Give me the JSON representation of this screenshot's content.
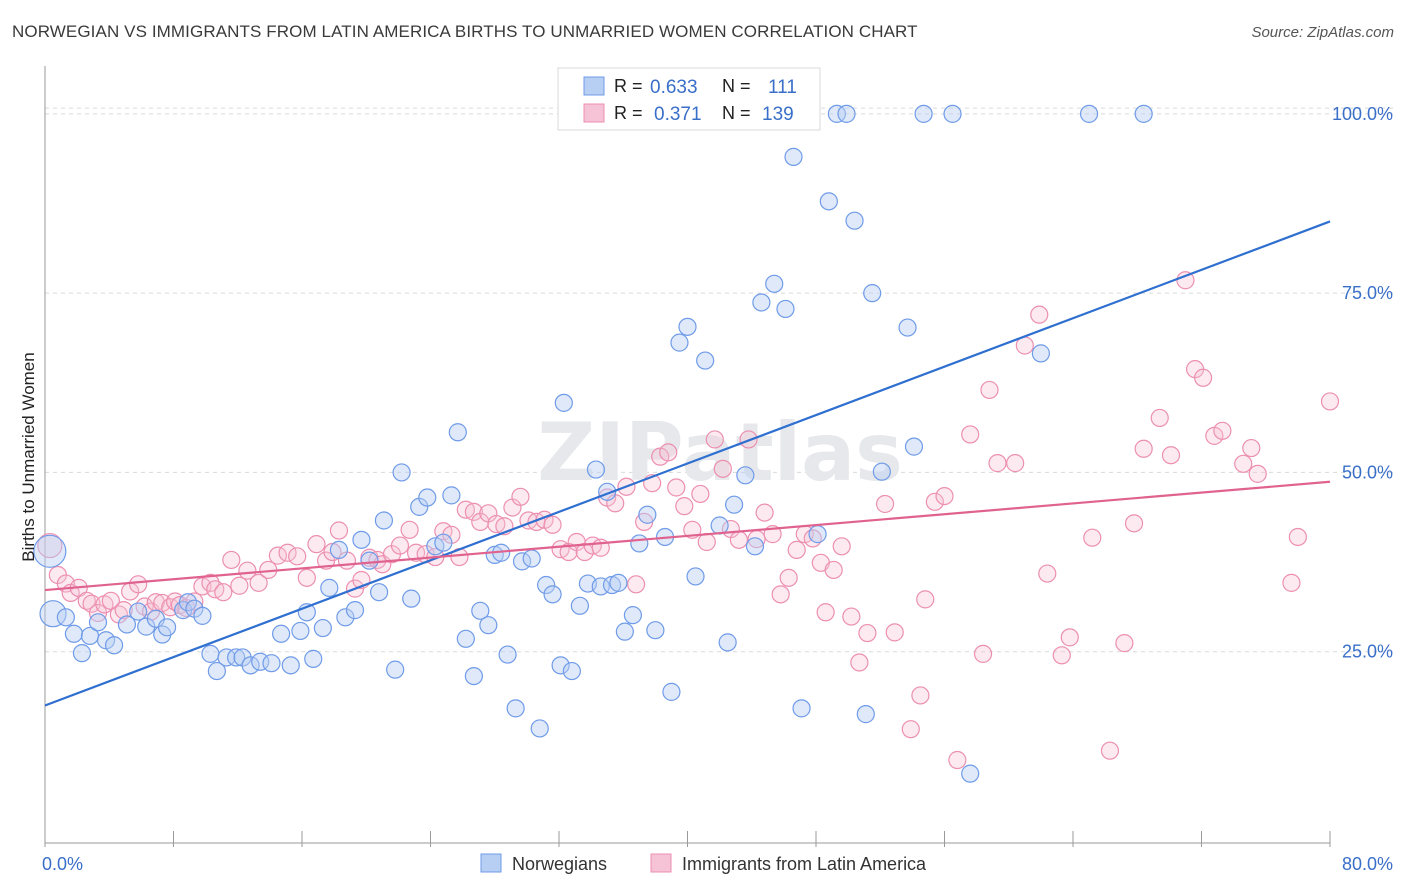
{
  "title": "NORWEGIAN VS IMMIGRANTS FROM LATIN AMERICA BIRTHS TO UNMARRIED WOMEN CORRELATION CHART",
  "source": "Source: ZipAtlas.com",
  "watermark": "ZIPatlas",
  "colors": {
    "blue": "#6f9be8",
    "blue_fill": "#b7cff3",
    "blue_line": "#2e6fd0",
    "pink": "#ec8fb0",
    "pink_fill": "#f6c2d5",
    "pink_line": "#e0628f",
    "tick": "#3a6fc9"
  },
  "legend_top": [
    {
      "r_label": "R =",
      "r": "0.633",
      "n_label": "N =",
      "n": "111"
    },
    {
      "r_label": "R =",
      "r": "0.371",
      "n_label": "N =",
      "n": "139"
    }
  ],
  "chart_data": {
    "type": "scatter",
    "title": "NORWEGIAN VS IMMIGRANTS FROM LATIN AMERICA BIRTHS TO UNMARRIED WOMEN CORRELATION CHART",
    "xlabel": "",
    "ylabel": "Births to Unmarried Women",
    "xlim": [
      0,
      80
    ],
    "ylim": [
      0,
      105
    ],
    "x_tick_labels": [
      "0.0%",
      "80.0%"
    ],
    "y_tick_labels": [
      "25.0%",
      "50.0%",
      "75.0%",
      "100.0%"
    ],
    "y_ticks": [
      25,
      50,
      75,
      100
    ],
    "grid": true,
    "legend_position": "bottom-center",
    "series": [
      {
        "name": "Norwegians",
        "color": "#6f9be8",
        "regression": {
          "x0": 0,
          "y0": 17.5,
          "x1": 80,
          "y1": 85.0
        },
        "points": [
          [
            0.3,
            39
          ],
          [
            0.5,
            30.3
          ],
          [
            1.3,
            29.8
          ],
          [
            1.8,
            27.5
          ],
          [
            2.3,
            24.8
          ],
          [
            2.8,
            27.2
          ],
          [
            3.3,
            29.1
          ],
          [
            3.8,
            26.6
          ],
          [
            4.3,
            25.9
          ],
          [
            5.1,
            28.8
          ],
          [
            5.8,
            30.6
          ],
          [
            6.3,
            28.5
          ],
          [
            6.9,
            29.6
          ],
          [
            7.3,
            27.4
          ],
          [
            7.6,
            28.4
          ],
          [
            8.6,
            30.8
          ],
          [
            8.9,
            31.9
          ],
          [
            9.3,
            31.0
          ],
          [
            9.8,
            30.0
          ],
          [
            10.3,
            24.7
          ],
          [
            10.7,
            22.3
          ],
          [
            11.3,
            24.2
          ],
          [
            11.9,
            24.2
          ],
          [
            12.3,
            24.2
          ],
          [
            12.8,
            23.1
          ],
          [
            13.4,
            23.6
          ],
          [
            14.1,
            23.4
          ],
          [
            14.7,
            27.5
          ],
          [
            15.3,
            23.1
          ],
          [
            15.9,
            27.9
          ],
          [
            16.3,
            30.5
          ],
          [
            16.7,
            24.0
          ],
          [
            17.3,
            28.3
          ],
          [
            17.7,
            33.9
          ],
          [
            18.3,
            39.2
          ],
          [
            18.7,
            29.8
          ],
          [
            19.3,
            30.8
          ],
          [
            19.7,
            40.6
          ],
          [
            20.2,
            37.7
          ],
          [
            20.8,
            33.3
          ],
          [
            21.1,
            43.3
          ],
          [
            21.8,
            22.5
          ],
          [
            22.2,
            50.0
          ],
          [
            22.8,
            32.4
          ],
          [
            23.3,
            45.2
          ],
          [
            23.8,
            46.5
          ],
          [
            24.3,
            39.7
          ],
          [
            24.8,
            40.2
          ],
          [
            25.3,
            46.8
          ],
          [
            25.7,
            55.6
          ],
          [
            26.2,
            26.8
          ],
          [
            26.7,
            21.6
          ],
          [
            27.1,
            30.7
          ],
          [
            27.6,
            28.7
          ],
          [
            28.0,
            38.5
          ],
          [
            28.4,
            38.8
          ],
          [
            28.8,
            24.6
          ],
          [
            29.3,
            17.1
          ],
          [
            29.7,
            37.6
          ],
          [
            30.3,
            38.0
          ],
          [
            30.8,
            14.3
          ],
          [
            31.2,
            34.3
          ],
          [
            31.6,
            33.0
          ],
          [
            32.1,
            23.1
          ],
          [
            32.3,
            59.7
          ],
          [
            32.8,
            22.3
          ],
          [
            33.3,
            31.4
          ],
          [
            33.8,
            34.5
          ],
          [
            34.3,
            50.4
          ],
          [
            34.6,
            34.1
          ],
          [
            35.0,
            47.3
          ],
          [
            35.3,
            34.3
          ],
          [
            35.7,
            34.6
          ],
          [
            36.1,
            27.8
          ],
          [
            36.6,
            30.1
          ],
          [
            37.0,
            40.1
          ],
          [
            37.5,
            44.1
          ],
          [
            38.0,
            28.0
          ],
          [
            38.6,
            41.0
          ],
          [
            39.0,
            19.4
          ],
          [
            39.5,
            68.1
          ],
          [
            40.0,
            70.3
          ],
          [
            40.5,
            35.5
          ],
          [
            41.1,
            65.6
          ],
          [
            42.0,
            42.6
          ],
          [
            42.5,
            26.3
          ],
          [
            42.9,
            45.5
          ],
          [
            43.6,
            49.6
          ],
          [
            44.2,
            39.7
          ],
          [
            44.6,
            73.7
          ],
          [
            45.4,
            76.3
          ],
          [
            46.1,
            72.8
          ],
          [
            46.6,
            94.0
          ],
          [
            47.1,
            17.1
          ],
          [
            48.1,
            41.4
          ],
          [
            48.8,
            87.8
          ],
          [
            49.3,
            100
          ],
          [
            49.9,
            100
          ],
          [
            50.4,
            85.1
          ],
          [
            51.1,
            16.3
          ],
          [
            51.5,
            75.0
          ],
          [
            52.1,
            50.1
          ],
          [
            53.7,
            70.2
          ],
          [
            54.1,
            53.6
          ],
          [
            54.7,
            100
          ],
          [
            56.5,
            100
          ],
          [
            57.6,
            8.0
          ],
          [
            62.0,
            66.6
          ],
          [
            65.0,
            100
          ],
          [
            68.4,
            100
          ]
        ]
      },
      {
        "name": "Immigrants from Latin America",
        "color": "#ec8fb0",
        "regression": {
          "x0": 0,
          "y0": 33.6,
          "x1": 80,
          "y1": 48.7
        },
        "points": [
          [
            0.3,
            39.8
          ],
          [
            0.8,
            35.7
          ],
          [
            1.3,
            34.5
          ],
          [
            1.6,
            33.2
          ],
          [
            2.1,
            33.9
          ],
          [
            2.6,
            32.1
          ],
          [
            2.9,
            31.7
          ],
          [
            3.3,
            30.4
          ],
          [
            3.7,
            31.6
          ],
          [
            4.1,
            32.1
          ],
          [
            4.6,
            30.2
          ],
          [
            4.9,
            30.8
          ],
          [
            5.3,
            33.4
          ],
          [
            5.8,
            34.4
          ],
          [
            6.2,
            31.3
          ],
          [
            6.6,
            30.6
          ],
          [
            6.9,
            31.9
          ],
          [
            7.3,
            31.8
          ],
          [
            7.8,
            31.2
          ],
          [
            8.1,
            32.0
          ],
          [
            8.4,
            31.5
          ],
          [
            8.8,
            31.1
          ],
          [
            9.3,
            32.0
          ],
          [
            9.8,
            34.1
          ],
          [
            10.3,
            34.6
          ],
          [
            10.6,
            33.7
          ],
          [
            11.1,
            33.3
          ],
          [
            11.6,
            37.8
          ],
          [
            12.1,
            34.2
          ],
          [
            12.6,
            36.3
          ],
          [
            13.3,
            34.6
          ],
          [
            13.9,
            36.4
          ],
          [
            14.5,
            38.4
          ],
          [
            15.1,
            38.8
          ],
          [
            15.7,
            38.3
          ],
          [
            16.3,
            35.3
          ],
          [
            16.9,
            40.0
          ],
          [
            17.5,
            37.7
          ],
          [
            17.9,
            38.9
          ],
          [
            18.3,
            41.9
          ],
          [
            18.8,
            37.7
          ],
          [
            19.3,
            33.8
          ],
          [
            19.7,
            35.0
          ],
          [
            20.2,
            38.1
          ],
          [
            20.7,
            37.8
          ],
          [
            21.0,
            37.2
          ],
          [
            21.6,
            38.6
          ],
          [
            22.1,
            39.8
          ],
          [
            22.7,
            42.0
          ],
          [
            23.1,
            38.8
          ],
          [
            23.7,
            38.6
          ],
          [
            24.3,
            38.2
          ],
          [
            24.8,
            41.8
          ],
          [
            25.3,
            41.3
          ],
          [
            25.8,
            38.2
          ],
          [
            26.2,
            44.8
          ],
          [
            26.7,
            44.5
          ],
          [
            27.1,
            43.1
          ],
          [
            27.6,
            44.3
          ],
          [
            28.1,
            42.8
          ],
          [
            28.6,
            42.5
          ],
          [
            29.1,
            45.1
          ],
          [
            29.6,
            46.6
          ],
          [
            30.1,
            43.3
          ],
          [
            30.6,
            43.1
          ],
          [
            31.1,
            43.4
          ],
          [
            31.6,
            42.7
          ],
          [
            32.1,
            39.3
          ],
          [
            32.6,
            38.9
          ],
          [
            33.1,
            40.3
          ],
          [
            33.6,
            38.9
          ],
          [
            34.1,
            39.8
          ],
          [
            34.6,
            39.5
          ],
          [
            35.0,
            46.5
          ],
          [
            35.5,
            45.7
          ],
          [
            36.2,
            48.0
          ],
          [
            36.8,
            34.4
          ],
          [
            37.3,
            43.1
          ],
          [
            37.8,
            48.5
          ],
          [
            38.3,
            52.2
          ],
          [
            38.8,
            52.8
          ],
          [
            39.3,
            47.9
          ],
          [
            39.8,
            45.3
          ],
          [
            40.3,
            42.0
          ],
          [
            40.8,
            47.0
          ],
          [
            41.2,
            40.3
          ],
          [
            41.7,
            54.6
          ],
          [
            42.2,
            50.5
          ],
          [
            42.7,
            42.1
          ],
          [
            43.2,
            40.6
          ],
          [
            43.8,
            54.6
          ],
          [
            44.3,
            40.7
          ],
          [
            44.8,
            44.4
          ],
          [
            45.3,
            41.4
          ],
          [
            45.8,
            33.0
          ],
          [
            46.3,
            35.3
          ],
          [
            46.8,
            39.2
          ],
          [
            47.3,
            41.4
          ],
          [
            47.8,
            40.8
          ],
          [
            48.3,
            37.4
          ],
          [
            48.6,
            30.5
          ],
          [
            49.1,
            36.4
          ],
          [
            49.6,
            39.7
          ],
          [
            50.2,
            29.9
          ],
          [
            50.7,
            23.5
          ],
          [
            51.2,
            27.6
          ],
          [
            52.3,
            45.6
          ],
          [
            52.9,
            27.7
          ],
          [
            53.9,
            14.2
          ],
          [
            54.5,
            18.9
          ],
          [
            54.8,
            32.3
          ],
          [
            55.4,
            45.9
          ],
          [
            56.0,
            46.7
          ],
          [
            56.8,
            9.9
          ],
          [
            57.6,
            55.3
          ],
          [
            58.4,
            24.7
          ],
          [
            58.8,
            61.5
          ],
          [
            59.3,
            51.3
          ],
          [
            60.4,
            51.3
          ],
          [
            61.0,
            67.7
          ],
          [
            61.9,
            72.0
          ],
          [
            62.4,
            35.9
          ],
          [
            63.3,
            24.5
          ],
          [
            63.8,
            27.0
          ],
          [
            65.2,
            40.9
          ],
          [
            66.3,
            11.2
          ],
          [
            67.2,
            26.2
          ],
          [
            67.8,
            42.9
          ],
          [
            68.4,
            53.3
          ],
          [
            69.4,
            57.6
          ],
          [
            70.1,
            52.4
          ],
          [
            71.0,
            76.8
          ],
          [
            71.6,
            64.4
          ],
          [
            72.1,
            63.2
          ],
          [
            72.8,
            55.1
          ],
          [
            73.3,
            55.8
          ],
          [
            74.6,
            51.2
          ],
          [
            75.1,
            53.4
          ],
          [
            75.5,
            49.8
          ],
          [
            77.6,
            34.6
          ],
          [
            78.0,
            41.0
          ],
          [
            80.0,
            59.9
          ]
        ]
      }
    ]
  },
  "bottom_legend": {
    "series1": "Norwegians",
    "series2": "Immigrants from Latin America"
  }
}
